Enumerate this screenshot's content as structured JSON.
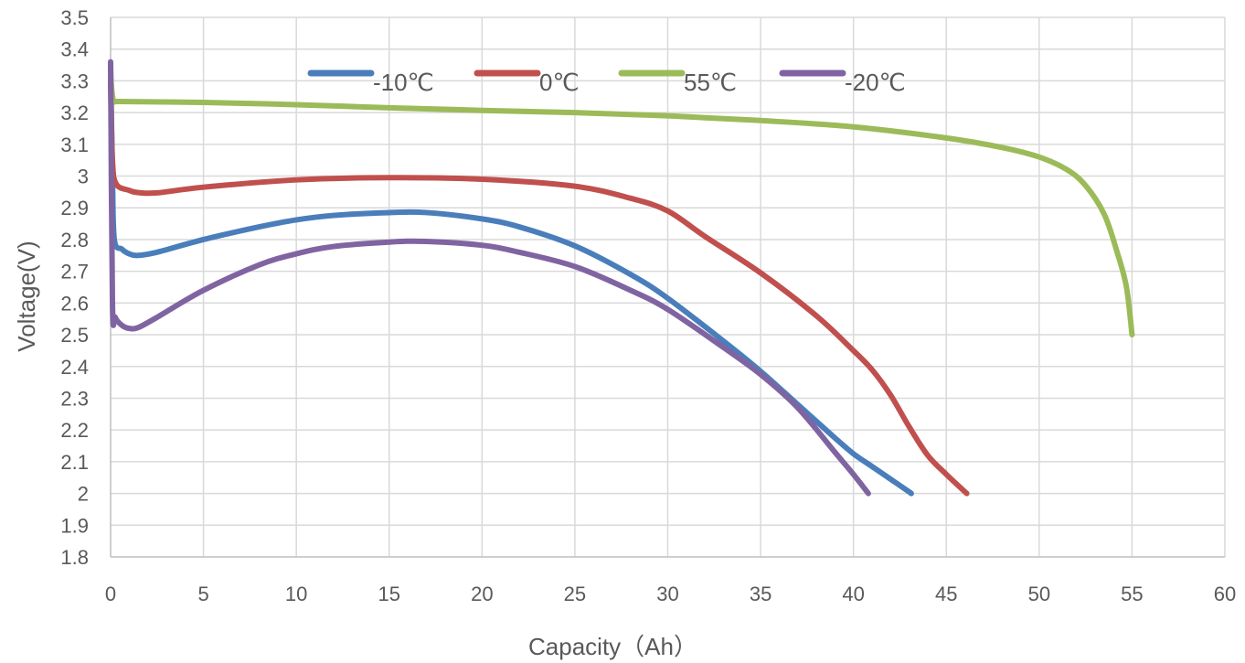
{
  "chart_data": {
    "type": "line",
    "title": "",
    "xlabel": "Capacity（Ah）",
    "ylabel": "Voltage(V)",
    "xlim": [
      0,
      60
    ],
    "ylim": [
      1.8,
      3.5
    ],
    "xticks": [
      0,
      5,
      10,
      15,
      20,
      25,
      30,
      35,
      40,
      45,
      50,
      55,
      60
    ],
    "xtick_labels": [
      "0",
      "5",
      "10",
      "15",
      "20",
      "25",
      "30",
      "35",
      "40",
      "45",
      "50",
      "55",
      "60"
    ],
    "yticks": [
      1.8,
      1.9,
      2.0,
      2.1,
      2.2,
      2.3,
      2.4,
      2.5,
      2.6,
      2.7,
      2.8,
      2.9,
      3.0,
      3.1,
      3.2,
      3.3,
      3.4,
      3.5
    ],
    "ytick_labels": [
      "1.8",
      "1.9",
      "2",
      "2.1",
      "2.2",
      "2.3",
      "2.4",
      "2.5",
      "2.6",
      "2.7",
      "2.8",
      "2.9",
      "3",
      "3.1",
      "3.2",
      "3.3",
      "3.4",
      "3.5"
    ],
    "grid": true,
    "legend_position": "top",
    "series": [
      {
        "name": "-10℃",
        "color": "#4a7ebb",
        "points": [
          [
            0,
            3.35
          ],
          [
            0.1,
            3.0
          ],
          [
            0.2,
            2.8
          ],
          [
            0.6,
            2.77
          ],
          [
            1.0,
            2.755
          ],
          [
            1.5,
            2.75
          ],
          [
            2.5,
            2.76
          ],
          [
            5,
            2.8
          ],
          [
            8,
            2.84
          ],
          [
            10,
            2.862
          ],
          [
            12,
            2.876
          ],
          [
            15,
            2.885
          ],
          [
            17,
            2.885
          ],
          [
            20,
            2.865
          ],
          [
            22,
            2.84
          ],
          [
            25,
            2.78
          ],
          [
            28,
            2.69
          ],
          [
            30,
            2.615
          ],
          [
            33,
            2.48
          ],
          [
            35,
            2.385
          ],
          [
            37,
            2.28
          ],
          [
            39,
            2.175
          ],
          [
            40,
            2.125
          ],
          [
            41,
            2.085
          ],
          [
            42,
            2.045
          ],
          [
            43,
            2.005
          ],
          [
            43.1,
            2.0
          ]
        ]
      },
      {
        "name": "0℃",
        "color": "#c0504d",
        "points": [
          [
            0,
            3.3
          ],
          [
            0.1,
            3.05
          ],
          [
            0.3,
            2.975
          ],
          [
            1.0,
            2.955
          ],
          [
            1.5,
            2.948
          ],
          [
            2.5,
            2.947
          ],
          [
            5,
            2.965
          ],
          [
            10,
            2.988
          ],
          [
            15,
            2.995
          ],
          [
            20,
            2.99
          ],
          [
            25,
            2.968
          ],
          [
            28,
            2.93
          ],
          [
            30,
            2.89
          ],
          [
            32,
            2.81
          ],
          [
            35,
            2.695
          ],
          [
            38,
            2.56
          ],
          [
            40,
            2.45
          ],
          [
            41,
            2.39
          ],
          [
            42,
            2.31
          ],
          [
            43,
            2.21
          ],
          [
            44,
            2.12
          ],
          [
            45,
            2.06
          ],
          [
            46.1,
            2.0
          ]
        ]
      },
      {
        "name": "55℃",
        "color": "#9bbb59",
        "points": [
          [
            0,
            3.32
          ],
          [
            0.15,
            3.237
          ],
          [
            0.5,
            3.235
          ],
          [
            5,
            3.232
          ],
          [
            10,
            3.225
          ],
          [
            15,
            3.215
          ],
          [
            20,
            3.207
          ],
          [
            25,
            3.2
          ],
          [
            30,
            3.19
          ],
          [
            35,
            3.175
          ],
          [
            40,
            3.155
          ],
          [
            45,
            3.12
          ],
          [
            48,
            3.09
          ],
          [
            50,
            3.06
          ],
          [
            51.5,
            3.02
          ],
          [
            52.5,
            2.97
          ],
          [
            53.5,
            2.88
          ],
          [
            54.2,
            2.76
          ],
          [
            54.7,
            2.65
          ],
          [
            55,
            2.5
          ]
        ]
      },
      {
        "name": "-20℃",
        "color": "#8064a2",
        "points": [
          [
            0,
            3.36
          ],
          [
            0.1,
            2.6
          ],
          [
            0.25,
            2.555
          ],
          [
            0.6,
            2.53
          ],
          [
            1.0,
            2.52
          ],
          [
            1.5,
            2.523
          ],
          [
            2.5,
            2.555
          ],
          [
            5,
            2.64
          ],
          [
            8,
            2.72
          ],
          [
            10,
            2.755
          ],
          [
            12,
            2.778
          ],
          [
            15,
            2.792
          ],
          [
            17,
            2.794
          ],
          [
            20,
            2.782
          ],
          [
            22,
            2.76
          ],
          [
            25,
            2.715
          ],
          [
            28,
            2.64
          ],
          [
            30,
            2.58
          ],
          [
            33,
            2.46
          ],
          [
            35,
            2.375
          ],
          [
            37,
            2.27
          ],
          [
            39,
            2.13
          ],
          [
            40,
            2.06
          ],
          [
            40.8,
            2.0
          ]
        ]
      }
    ]
  }
}
